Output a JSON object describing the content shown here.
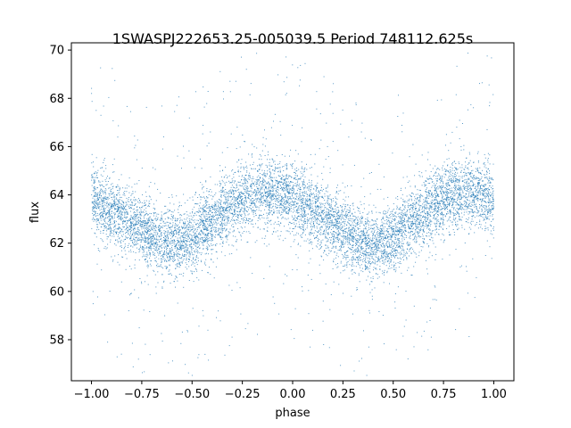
{
  "chart_data": {
    "type": "scatter",
    "title": "1SWASPJ222653.25-005039.5 Period 748112.625s",
    "xlabel": "phase",
    "ylabel": "flux",
    "xlim": [
      -1.1,
      1.1
    ],
    "ylim": [
      56.3,
      70.3
    ],
    "xticks": [
      -1.0,
      -0.75,
      -0.5,
      -0.25,
      0.0,
      0.25,
      0.5,
      0.75,
      1.0
    ],
    "xtick_labels": [
      "−1.00",
      "−0.75",
      "−0.50",
      "−0.25",
      "0.00",
      "0.25",
      "0.50",
      "0.75",
      "1.00"
    ],
    "yticks": [
      58,
      60,
      62,
      64,
      66,
      68,
      70
    ],
    "ytick_labels": [
      "58",
      "60",
      "62",
      "64",
      "66",
      "68",
      "70"
    ],
    "grid": false,
    "legend": "none",
    "marker_color": "#1f77b4",
    "series": [
      {
        "profile_x": [
          -1.0,
          -0.9,
          -0.8,
          -0.7,
          -0.6,
          -0.5,
          -0.4,
          -0.3,
          -0.2,
          -0.1,
          0.0,
          0.1,
          0.2,
          0.3,
          0.4,
          0.5,
          0.6,
          0.7,
          0.8,
          0.9,
          1.0
        ],
        "profile_flux": [
          63.8,
          63.3,
          62.8,
          62.3,
          62.0,
          62.2,
          62.9,
          63.6,
          64.0,
          64.1,
          63.9,
          63.4,
          62.8,
          62.2,
          61.9,
          62.2,
          62.9,
          63.6,
          64.0,
          64.1,
          63.8
        ],
        "profile_scatter": 0.7
      }
    ]
  }
}
